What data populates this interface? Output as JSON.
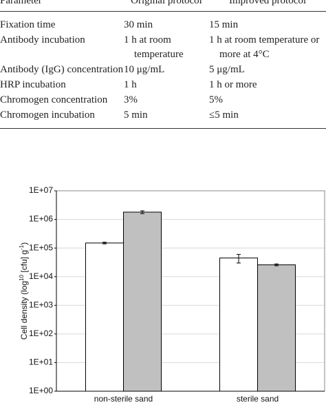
{
  "table": {
    "header": [
      "Parameter",
      "Original protocol",
      "Improved protocol"
    ],
    "rows": [
      [
        "Fixation time",
        "30 min",
        "15 min"
      ],
      [
        "Antibody incubation",
        "1 h at room temperature",
        "1 h at room temperature or more at 4°C"
      ],
      [
        "Antibody (IgG) concentration",
        "10 μg/mL",
        "5 μg/mL"
      ],
      [
        "HRP incubation",
        "1 h",
        "1 h or more"
      ],
      [
        "Chromogen concentration",
        "3%",
        "5%"
      ],
      [
        "Chromogen incubation",
        "5 min",
        "≤5 min"
      ]
    ]
  },
  "chart_data": {
    "type": "bar",
    "log_scale": true,
    "grid": true,
    "y_label": [
      "Cell density (log",
      "10",
      " [cfu] g",
      "-1",
      ")"
    ],
    "categories": [
      "non-sterile sand",
      "sterile sand"
    ],
    "series": [
      {
        "color": "#ffffff",
        "values": [
          150000,
          45000
        ],
        "errors": [
          10000,
          15000
        ]
      },
      {
        "color": "#c0c0c0",
        "values": [
          1800000,
          26000
        ],
        "errors": [
          200000,
          2000
        ]
      }
    ],
    "ylim": [
      1,
      10000000
    ],
    "yticks": [
      {
        "value": 1,
        "label": "1E+00"
      },
      {
        "value": 10,
        "label": "1E+01"
      },
      {
        "value": 100,
        "label": "1E+02"
      },
      {
        "value": 1000,
        "label": "1E+03"
      },
      {
        "value": 10000,
        "label": "1E+04"
      },
      {
        "value": 100000,
        "label": "1E+05"
      },
      {
        "value": 1000000,
        "label": "1E+06"
      },
      {
        "value": 10000000,
        "label": "1E+07"
      }
    ]
  }
}
